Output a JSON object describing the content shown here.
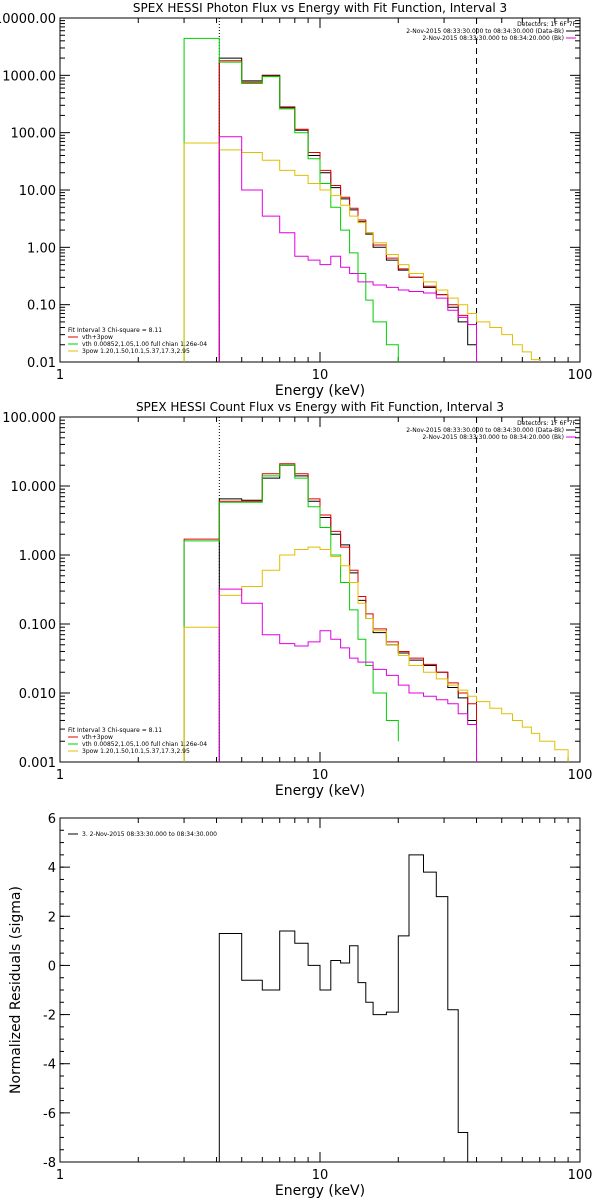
{
  "chart_data": [
    {
      "type": "line",
      "title": "SPEX HESSI Photon Flux vs Energy with Fit Function, Interval 3",
      "xlabel": "Energy (keV)",
      "ylabel": "",
      "xscale": "log",
      "yscale": "log",
      "xlim": [
        1,
        100
      ],
      "ylim": [
        0.01,
        10000
      ],
      "xticks": [
        {
          "v": 1,
          "label": "1"
        },
        {
          "v": 10,
          "label": "10"
        },
        {
          "v": 100,
          "label": "100"
        }
      ],
      "yticks": [
        {
          "v": 10000,
          "label": "10000.00"
        },
        {
          "v": 1000,
          "label": "1000.00"
        },
        {
          "v": 100,
          "label": "100.00"
        },
        {
          "v": 10,
          "label": "10.00"
        },
        {
          "v": 1,
          "label": "1.00"
        },
        {
          "v": 0.1,
          "label": "0.10"
        },
        {
          "v": 0.01,
          "label": "0.01"
        }
      ],
      "vlines": [
        {
          "x": 4.1,
          "style": "dotted"
        },
        {
          "x": 40,
          "style": "dashed"
        }
      ],
      "legend_right": {
        "header": "Detectors: 1F 6F 7F",
        "items": [
          {
            "label": "2-Nov-2015 08:33:30.000 to 08:34:30.000 (Data-Bk)",
            "color": "#000000"
          },
          {
            "label": "2-Nov-2015 08:33:30.000 to 08:34:20.000 (Bk)",
            "color": "#e000e0"
          }
        ]
      },
      "legend_left": {
        "header": "Fit Interval 3   Chi-square = 8.11",
        "items": [
          {
            "label": "vth+3pow",
            "color": "#e00000"
          },
          {
            "label": "vth 0.00852,1.05,1.00  full chian 1.26e-04",
            "color": "#00d000"
          },
          {
            "label": "3pow 1.20,1.50,10.1,5.37,17.3,2.95",
            "color": "#e0c000"
          }
        ]
      },
      "series": [
        {
          "color": "#000000",
          "edges": [
            4.1,
            5.0,
            6.0,
            7.0,
            8.0,
            9.0,
            10.0,
            11.0,
            12.0,
            13.0,
            14.0,
            15.0,
            16.0,
            18.0,
            20.0,
            22.0,
            25.0,
            28.0,
            31.0,
            34.0,
            37.0,
            40.0
          ],
          "values": [
            2000,
            800,
            1000,
            280,
            110,
            40,
            20,
            11,
            7,
            4.5,
            2.8,
            1.7,
            1.0,
            0.6,
            0.4,
            0.3,
            0.2,
            0.15,
            0.09,
            0.05,
            0.02
          ]
        },
        {
          "color": "#e00000",
          "edges": [
            4.1,
            5.0,
            6.0,
            7.0,
            8.0,
            9.0,
            10.0,
            11.0,
            12.0,
            13.0,
            14.0,
            15.0,
            16.0,
            18.0,
            20.0,
            22.0,
            25.0,
            28.0,
            31.0,
            34.0,
            37.0,
            40.0
          ],
          "values": [
            1800,
            760,
            970,
            270,
            115,
            45,
            22,
            12,
            7.5,
            4.8,
            3.0,
            1.8,
            1.1,
            0.65,
            0.42,
            0.3,
            0.21,
            0.15,
            0.1,
            0.065,
            0.045
          ]
        },
        {
          "color": "#00d000",
          "edges": [
            3.0,
            4.1,
            5.0,
            6.0,
            7.0,
            8.0,
            9.0,
            10.0,
            11.0,
            12.0,
            13.0,
            14.0,
            15.0,
            16.0,
            18.0,
            20.0
          ],
          "values": [
            4400,
            1700,
            720,
            950,
            260,
            100,
            35,
            13,
            5,
            2,
            0.8,
            0.35,
            0.12,
            0.05,
            0.02
          ]
        },
        {
          "color": "#e0c000",
          "edges": [
            3.0,
            4.1,
            5.0,
            6.0,
            7.0,
            8.0,
            9.0,
            10.0,
            11.0,
            12.0,
            13.0,
            14.0,
            15.0,
            16.0,
            18.0,
            20.0,
            22.0,
            25.0,
            28.0,
            31.0,
            34.0,
            37.0,
            40.0,
            45.0,
            50.0,
            55.0,
            60.0,
            65.0,
            70.0
          ],
          "values": [
            66,
            50,
            45,
            33,
            22,
            18,
            13,
            10,
            8,
            5.4,
            3.5,
            2.7,
            1.8,
            1.2,
            0.75,
            0.5,
            0.35,
            0.25,
            0.18,
            0.13,
            0.1,
            0.07,
            0.05,
            0.04,
            0.03,
            0.02,
            0.015,
            0.011
          ]
        },
        {
          "color": "#e000e0",
          "edges": [
            4.1,
            5.0,
            6.0,
            7.0,
            8.0,
            9.0,
            10.0,
            11.0,
            12.0,
            13.0,
            14.0,
            16.0,
            18.0,
            20.0,
            22.0,
            25.0,
            28.0,
            31.0,
            34.0,
            37.0,
            40.0
          ],
          "values": [
            85,
            10,
            3.5,
            1.8,
            0.7,
            0.6,
            0.5,
            0.7,
            0.45,
            0.35,
            0.25,
            0.22,
            0.2,
            0.18,
            0.17,
            0.16,
            0.13,
            0.08,
            0.06,
            0.045
          ]
        }
      ]
    },
    {
      "type": "line",
      "title": "SPEX HESSI Count Flux vs Energy with Fit Function, Interval 3",
      "xlabel": "Energy (keV)",
      "ylabel": "",
      "xscale": "log",
      "yscale": "log",
      "xlim": [
        1,
        100
      ],
      "ylim": [
        0.001,
        100
      ],
      "xticks": [
        {
          "v": 1,
          "label": "1"
        },
        {
          "v": 10,
          "label": "10"
        },
        {
          "v": 100,
          "label": "100"
        }
      ],
      "yticks": [
        {
          "v": 100,
          "label": "100.000"
        },
        {
          "v": 10,
          "label": "10.000"
        },
        {
          "v": 1,
          "label": "1.000"
        },
        {
          "v": 0.1,
          "label": "0.100"
        },
        {
          "v": 0.01,
          "label": "0.010"
        },
        {
          "v": 0.001,
          "label": "0.001"
        }
      ],
      "vlines": [
        {
          "x": 4.1,
          "style": "dotted"
        },
        {
          "x": 40,
          "style": "dashed"
        }
      ],
      "legend_right": {
        "header": "Detectors: 1F 6F 7F",
        "items": [
          {
            "label": "2-Nov-2015 08:33:30.000 to 08:34:30.000 (Data-Bk)",
            "color": "#000000"
          },
          {
            "label": "2-Nov-2015 08:33:30.000 to 08:34:20.000 (Bk)",
            "color": "#e000e0"
          }
        ]
      },
      "legend_left": {
        "header": "Fit Interval 3   Chi-square = 8.11",
        "items": [
          {
            "label": "vth+3pow",
            "color": "#e00000"
          },
          {
            "label": "vth 0.00852,1.05,1.00  full chian 1.26e-04",
            "color": "#00d000"
          },
          {
            "label": "3pow 1.20,1.50,10.1,5.37,17.3,2.95",
            "color": "#e0c000"
          }
        ]
      },
      "series": [
        {
          "color": "#000000",
          "edges": [
            4.1,
            5.0,
            6.0,
            7.0,
            8.0,
            9.0,
            10.0,
            11.0,
            12.0,
            13.0,
            14.0,
            15.0,
            16.0,
            18.0,
            20.0,
            22.0,
            25.0,
            28.0,
            31.0,
            34.0,
            37.0,
            40.0
          ],
          "values": [
            6.5,
            6.2,
            13,
            20,
            14,
            6,
            3.5,
            2.0,
            1.4,
            0.55,
            0.22,
            0.12,
            0.075,
            0.05,
            0.038,
            0.03,
            0.025,
            0.02,
            0.012,
            0.0085,
            0.004
          ]
        },
        {
          "color": "#e00000",
          "edges": [
            3.0,
            4.1,
            5.0,
            6.0,
            7.0,
            8.0,
            9.0,
            10.0,
            11.0,
            12.0,
            13.0,
            14.0,
            15.0,
            16.0,
            18.0,
            20.0,
            22.0,
            25.0,
            28.0,
            31.0,
            34.0,
            37.0,
            40.0
          ],
          "values": [
            1.7,
            6.0,
            6.0,
            15,
            21,
            15,
            6.5,
            3.8,
            2.2,
            1.3,
            0.6,
            0.25,
            0.14,
            0.085,
            0.055,
            0.04,
            0.032,
            0.026,
            0.02,
            0.014,
            0.01,
            0.007
          ]
        },
        {
          "color": "#00d000",
          "edges": [
            3.0,
            4.1,
            5.0,
            6.0,
            7.0,
            8.0,
            9.0,
            10.0,
            11.0,
            12.0,
            13.0,
            14.0,
            15.0,
            16.0,
            18.0,
            20.0
          ],
          "values": [
            1.6,
            5.8,
            5.8,
            14,
            20,
            13,
            5,
            2.5,
            1.0,
            0.4,
            0.16,
            0.06,
            0.025,
            0.01,
            0.004,
            0.002
          ]
        },
        {
          "color": "#e0c000",
          "edges": [
            3.0,
            4.1,
            5.0,
            6.0,
            7.0,
            8.0,
            9.0,
            10.0,
            11.0,
            12.0,
            13.0,
            14.0,
            15.0,
            16.0,
            18.0,
            20.0,
            22.0,
            25.0,
            28.0,
            31.0,
            34.0,
            37.0,
            40.0,
            45.0,
            50.0,
            55.0,
            60.0,
            65.0,
            70.0,
            80.0,
            90.0
          ],
          "values": [
            0.09,
            0.26,
            0.35,
            0.6,
            1.0,
            1.2,
            1.3,
            1.2,
            0.95,
            0.7,
            0.4,
            0.2,
            0.12,
            0.08,
            0.05,
            0.035,
            0.025,
            0.02,
            0.016,
            0.013,
            0.011,
            0.009,
            0.0075,
            0.006,
            0.005,
            0.004,
            0.0032,
            0.0026,
            0.002,
            0.0015
          ]
        },
        {
          "color": "#e000e0",
          "edges": [
            4.1,
            5.0,
            6.0,
            7.0,
            8.0,
            9.0,
            10.0,
            11.0,
            12.0,
            13.0,
            14.0,
            16.0,
            18.0,
            20.0,
            22.0,
            25.0,
            28.0,
            31.0,
            34.0,
            37.0,
            40.0
          ],
          "values": [
            0.32,
            0.2,
            0.07,
            0.052,
            0.048,
            0.055,
            0.08,
            0.06,
            0.045,
            0.032,
            0.028,
            0.022,
            0.018,
            0.013,
            0.01,
            0.009,
            0.008,
            0.007,
            0.005,
            0.0035
          ]
        }
      ]
    },
    {
      "type": "line",
      "title": "",
      "xlabel": "Energy (keV)",
      "ylabel": "Normalized Residuals (sigma)",
      "xscale": "log",
      "yscale": "linear",
      "xlim": [
        1,
        100
      ],
      "ylim": [
        -8,
        6
      ],
      "xticks": [
        {
          "v": 1,
          "label": "1"
        },
        {
          "v": 10,
          "label": "10"
        },
        {
          "v": 100,
          "label": "100"
        }
      ],
      "yticks": [
        {
          "v": 6,
          "label": "6"
        },
        {
          "v": 4,
          "label": "4"
        },
        {
          "v": 2,
          "label": "2"
        },
        {
          "v": 0,
          "label": "0"
        },
        {
          "v": -2,
          "label": "-2"
        },
        {
          "v": -4,
          "label": "-4"
        },
        {
          "v": -6,
          "label": "-6"
        },
        {
          "v": -8,
          "label": "-8"
        }
      ],
      "legend_left": {
        "header": "",
        "items": [
          {
            "label": "3.  2-Nov-2015 08:33:30.000 to 08:34:30.000",
            "color": "#000000"
          }
        ]
      },
      "series": [
        {
          "color": "#000000",
          "edges": [
            4.1,
            5.0,
            6.0,
            7.0,
            8.0,
            9.0,
            10.0,
            11.0,
            12.0,
            13.0,
            14.0,
            15.0,
            16.0,
            18.0,
            20.0,
            22.0,
            25.0,
            28.0,
            31.0,
            34.0,
            37.0,
            40.0
          ],
          "values": [
            1.3,
            -0.6,
            -1.0,
            1.4,
            0.9,
            0.0,
            -1.0,
            0.2,
            0.1,
            0.8,
            -0.7,
            -1.5,
            -2.0,
            -1.9,
            1.2,
            4.5,
            3.8,
            2.8,
            -1.8,
            -6.8,
            -8.0
          ],
          "drop_start_to": -8
        }
      ]
    }
  ]
}
